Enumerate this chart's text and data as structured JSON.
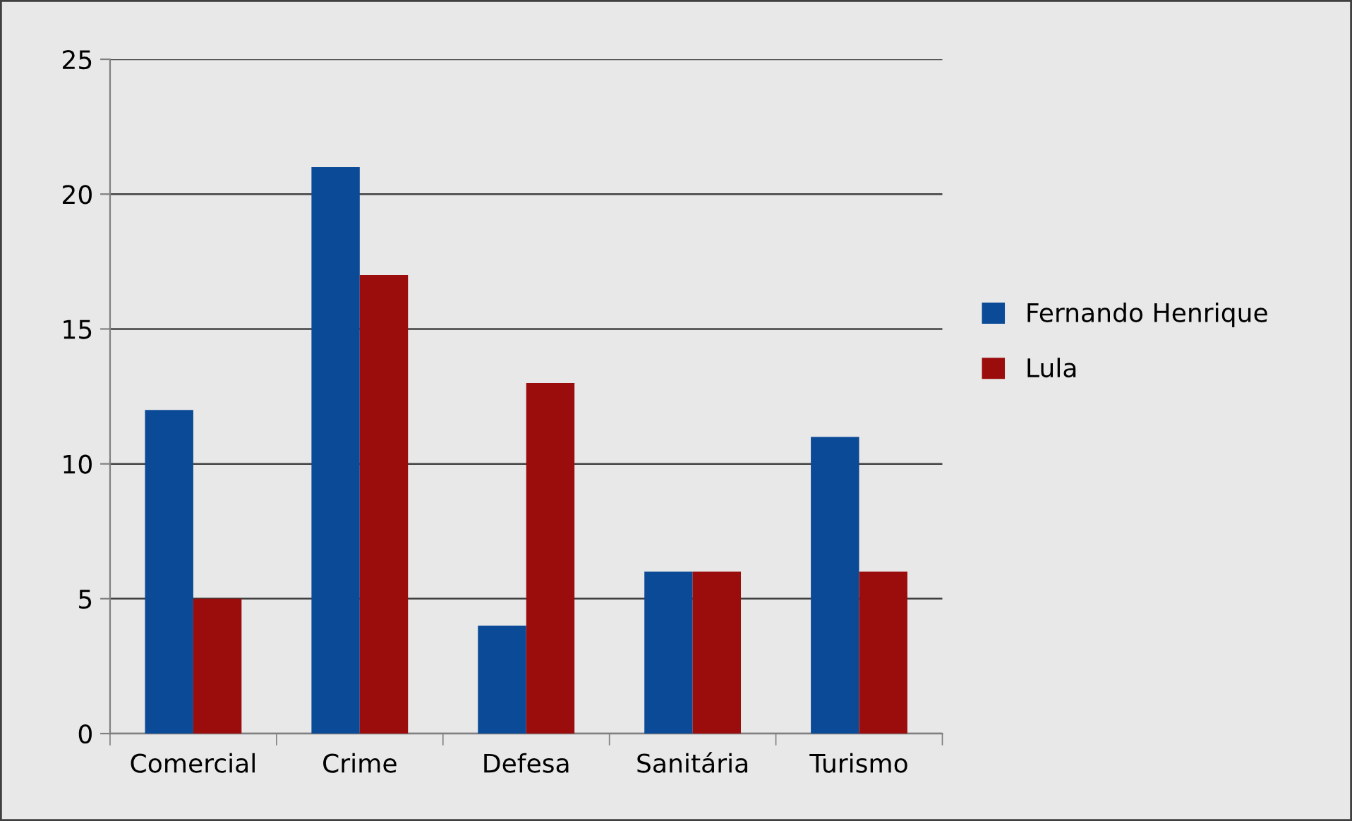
{
  "chart_data": {
    "type": "bar",
    "categories": [
      "Comercial",
      "Crime",
      "Defesa",
      "Sanitária",
      "Turismo"
    ],
    "series": [
      {
        "name": "Fernando Henrique",
        "color": "#0a4a96",
        "values": [
          12,
          21,
          4,
          6,
          11
        ]
      },
      {
        "name": "Lula",
        "color": "#9b0c0c",
        "values": [
          5,
          17,
          13,
          6,
          6
        ]
      }
    ],
    "ylim": [
      0,
      25
    ],
    "yticks": [
      0,
      5,
      10,
      15,
      20,
      25
    ],
    "grid": "y",
    "legend": "right"
  }
}
